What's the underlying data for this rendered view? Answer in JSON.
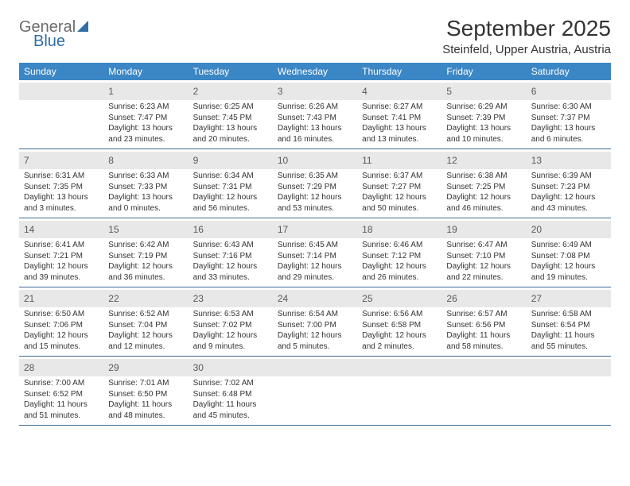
{
  "logo": {
    "line1": "General",
    "line2": "Blue"
  },
  "title": "September 2025",
  "location": "Steinfeld, Upper Austria, Austria",
  "colors": {
    "header_bg": "#3b86c4",
    "header_text": "#ffffff",
    "daynum_bg": "#e8e8e8",
    "week_border": "#3b6a94",
    "logo_blue": "#2f6fa5",
    "logo_gray": "#6b6b6b"
  },
  "weekdays": [
    "Sunday",
    "Monday",
    "Tuesday",
    "Wednesday",
    "Thursday",
    "Friday",
    "Saturday"
  ],
  "weeks": [
    [
      {
        "n": "",
        "sunrise": "",
        "sunset": "",
        "daylight": ""
      },
      {
        "n": "1",
        "sunrise": "Sunrise: 6:23 AM",
        "sunset": "Sunset: 7:47 PM",
        "daylight": "Daylight: 13 hours and 23 minutes."
      },
      {
        "n": "2",
        "sunrise": "Sunrise: 6:25 AM",
        "sunset": "Sunset: 7:45 PM",
        "daylight": "Daylight: 13 hours and 20 minutes."
      },
      {
        "n": "3",
        "sunrise": "Sunrise: 6:26 AM",
        "sunset": "Sunset: 7:43 PM",
        "daylight": "Daylight: 13 hours and 16 minutes."
      },
      {
        "n": "4",
        "sunrise": "Sunrise: 6:27 AM",
        "sunset": "Sunset: 7:41 PM",
        "daylight": "Daylight: 13 hours and 13 minutes."
      },
      {
        "n": "5",
        "sunrise": "Sunrise: 6:29 AM",
        "sunset": "Sunset: 7:39 PM",
        "daylight": "Daylight: 13 hours and 10 minutes."
      },
      {
        "n": "6",
        "sunrise": "Sunrise: 6:30 AM",
        "sunset": "Sunset: 7:37 PM",
        "daylight": "Daylight: 13 hours and 6 minutes."
      }
    ],
    [
      {
        "n": "7",
        "sunrise": "Sunrise: 6:31 AM",
        "sunset": "Sunset: 7:35 PM",
        "daylight": "Daylight: 13 hours and 3 minutes."
      },
      {
        "n": "8",
        "sunrise": "Sunrise: 6:33 AM",
        "sunset": "Sunset: 7:33 PM",
        "daylight": "Daylight: 13 hours and 0 minutes."
      },
      {
        "n": "9",
        "sunrise": "Sunrise: 6:34 AM",
        "sunset": "Sunset: 7:31 PM",
        "daylight": "Daylight: 12 hours and 56 minutes."
      },
      {
        "n": "10",
        "sunrise": "Sunrise: 6:35 AM",
        "sunset": "Sunset: 7:29 PM",
        "daylight": "Daylight: 12 hours and 53 minutes."
      },
      {
        "n": "11",
        "sunrise": "Sunrise: 6:37 AM",
        "sunset": "Sunset: 7:27 PM",
        "daylight": "Daylight: 12 hours and 50 minutes."
      },
      {
        "n": "12",
        "sunrise": "Sunrise: 6:38 AM",
        "sunset": "Sunset: 7:25 PM",
        "daylight": "Daylight: 12 hours and 46 minutes."
      },
      {
        "n": "13",
        "sunrise": "Sunrise: 6:39 AM",
        "sunset": "Sunset: 7:23 PM",
        "daylight": "Daylight: 12 hours and 43 minutes."
      }
    ],
    [
      {
        "n": "14",
        "sunrise": "Sunrise: 6:41 AM",
        "sunset": "Sunset: 7:21 PM",
        "daylight": "Daylight: 12 hours and 39 minutes."
      },
      {
        "n": "15",
        "sunrise": "Sunrise: 6:42 AM",
        "sunset": "Sunset: 7:19 PM",
        "daylight": "Daylight: 12 hours and 36 minutes."
      },
      {
        "n": "16",
        "sunrise": "Sunrise: 6:43 AM",
        "sunset": "Sunset: 7:16 PM",
        "daylight": "Daylight: 12 hours and 33 minutes."
      },
      {
        "n": "17",
        "sunrise": "Sunrise: 6:45 AM",
        "sunset": "Sunset: 7:14 PM",
        "daylight": "Daylight: 12 hours and 29 minutes."
      },
      {
        "n": "18",
        "sunrise": "Sunrise: 6:46 AM",
        "sunset": "Sunset: 7:12 PM",
        "daylight": "Daylight: 12 hours and 26 minutes."
      },
      {
        "n": "19",
        "sunrise": "Sunrise: 6:47 AM",
        "sunset": "Sunset: 7:10 PM",
        "daylight": "Daylight: 12 hours and 22 minutes."
      },
      {
        "n": "20",
        "sunrise": "Sunrise: 6:49 AM",
        "sunset": "Sunset: 7:08 PM",
        "daylight": "Daylight: 12 hours and 19 minutes."
      }
    ],
    [
      {
        "n": "21",
        "sunrise": "Sunrise: 6:50 AM",
        "sunset": "Sunset: 7:06 PM",
        "daylight": "Daylight: 12 hours and 15 minutes."
      },
      {
        "n": "22",
        "sunrise": "Sunrise: 6:52 AM",
        "sunset": "Sunset: 7:04 PM",
        "daylight": "Daylight: 12 hours and 12 minutes."
      },
      {
        "n": "23",
        "sunrise": "Sunrise: 6:53 AM",
        "sunset": "Sunset: 7:02 PM",
        "daylight": "Daylight: 12 hours and 9 minutes."
      },
      {
        "n": "24",
        "sunrise": "Sunrise: 6:54 AM",
        "sunset": "Sunset: 7:00 PM",
        "daylight": "Daylight: 12 hours and 5 minutes."
      },
      {
        "n": "25",
        "sunrise": "Sunrise: 6:56 AM",
        "sunset": "Sunset: 6:58 PM",
        "daylight": "Daylight: 12 hours and 2 minutes."
      },
      {
        "n": "26",
        "sunrise": "Sunrise: 6:57 AM",
        "sunset": "Sunset: 6:56 PM",
        "daylight": "Daylight: 11 hours and 58 minutes."
      },
      {
        "n": "27",
        "sunrise": "Sunrise: 6:58 AM",
        "sunset": "Sunset: 6:54 PM",
        "daylight": "Daylight: 11 hours and 55 minutes."
      }
    ],
    [
      {
        "n": "28",
        "sunrise": "Sunrise: 7:00 AM",
        "sunset": "Sunset: 6:52 PM",
        "daylight": "Daylight: 11 hours and 51 minutes."
      },
      {
        "n": "29",
        "sunrise": "Sunrise: 7:01 AM",
        "sunset": "Sunset: 6:50 PM",
        "daylight": "Daylight: 11 hours and 48 minutes."
      },
      {
        "n": "30",
        "sunrise": "Sunrise: 7:02 AM",
        "sunset": "Sunset: 6:48 PM",
        "daylight": "Daylight: 11 hours and 45 minutes."
      },
      {
        "n": "",
        "sunrise": "",
        "sunset": "",
        "daylight": ""
      },
      {
        "n": "",
        "sunrise": "",
        "sunset": "",
        "daylight": ""
      },
      {
        "n": "",
        "sunrise": "",
        "sunset": "",
        "daylight": ""
      },
      {
        "n": "",
        "sunrise": "",
        "sunset": "",
        "daylight": ""
      }
    ]
  ]
}
